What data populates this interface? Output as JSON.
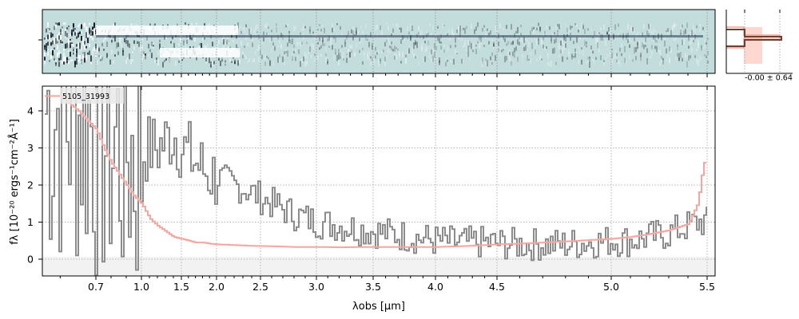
{
  "chart_data": {
    "type": "line",
    "object_id": "5105_31993",
    "xlabel": "λobs [μm]",
    "ylabel": "fλ [10⁻²⁰ ergs⁻¹cm⁻²Å⁻¹]",
    "x_scale": "nonlinear (pixel-based dispersion)",
    "x_ticks": [
      "0.7",
      "1.0",
      "1.5",
      "2.0",
      "2.5",
      "3.0",
      "3.5",
      "4.0",
      "4.5",
      "5.0",
      "5.5"
    ],
    "y_ticks": [
      "0",
      "1",
      "2",
      "3",
      "4"
    ],
    "ylim": [
      -0.45,
      4.65
    ],
    "grid": true,
    "series": [
      {
        "color": "#8c8c8c",
        "x": [
          0.6,
          0.65,
          0.7,
          0.75,
          0.8,
          0.85,
          0.9,
          0.95,
          1.0,
          1.1,
          1.2,
          1.3,
          1.4,
          1.5,
          1.6,
          1.7,
          1.8,
          1.9,
          2.0,
          2.2,
          2.4,
          2.6,
          2.8,
          3.0,
          3.2,
          3.4,
          3.6,
          3.8,
          4.0,
          4.2,
          4.4,
          4.6,
          4.8,
          5.0,
          5.1,
          5.2,
          5.3,
          5.4,
          5.45
        ],
        "y": [
          4.0,
          3.9,
          3.6,
          3.3,
          3.2,
          3.0,
          3.1,
          2.8,
          2.9,
          3.0,
          3.0,
          3.2,
          3.4,
          3.0,
          2.8,
          2.6,
          2.4,
          2.3,
          2.2,
          2.0,
          1.8,
          1.5,
          1.2,
          1.0,
          0.9,
          0.8,
          0.7,
          0.6,
          0.5,
          0.45,
          0.45,
          0.4,
          0.4,
          0.5,
          0.5,
          0.6,
          0.7,
          0.9,
          1.0
        ]
      },
      {
        "color": "#f4a6a0",
        "x": [
          0.6,
          0.65,
          0.7,
          0.75,
          0.8,
          0.85,
          0.9,
          0.95,
          1.0,
          1.1,
          1.2,
          1.3,
          1.4,
          1.5,
          1.6,
          1.7,
          1.8,
          1.9,
          2.0,
          2.2,
          2.4,
          2.6,
          2.8,
          3.0,
          3.2,
          3.4,
          3.6,
          3.8,
          4.0,
          4.2,
          4.4,
          4.6,
          4.8,
          5.0,
          5.1,
          5.2,
          5.3,
          5.4,
          5.45,
          5.48
        ],
        "y": [
          4.4,
          4.0,
          3.5,
          3.0,
          2.6,
          2.3,
          2.0,
          1.7,
          1.5,
          1.1,
          0.9,
          0.75,
          0.6,
          0.55,
          0.5,
          0.45,
          0.45,
          0.42,
          0.4,
          0.38,
          0.36,
          0.35,
          0.33,
          0.33,
          0.32,
          0.33,
          0.33,
          0.33,
          0.33,
          0.35,
          0.38,
          0.42,
          0.48,
          0.55,
          0.6,
          0.68,
          0.78,
          0.95,
          1.5,
          2.6
        ]
      }
    ],
    "profile_inset": {
      "annotation": "-0.00 ± 0.64"
    }
  }
}
